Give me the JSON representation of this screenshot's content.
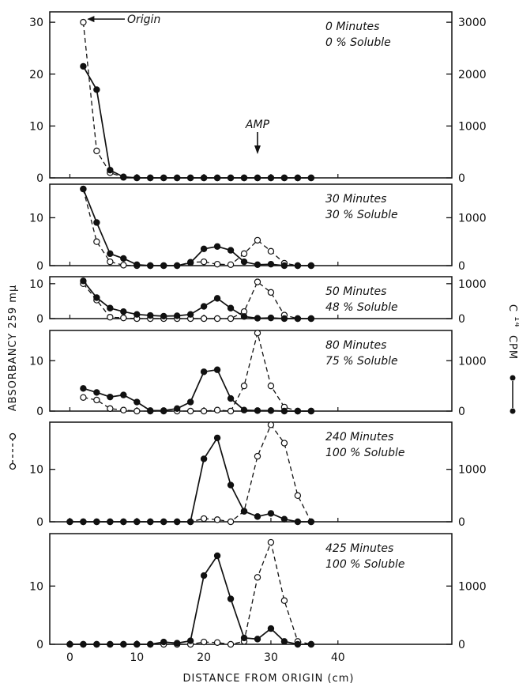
{
  "chart_data": {
    "type": "line",
    "xlabel": "DISTANCE FROM ORIGIN (cm)",
    "ylabel_left": "ABSORBANCY 259 mμ",
    "ylabel_right": "C14 CPM",
    "ylabel_right_base": "C",
    "ylabel_right_sup": "14",
    "ylabel_right_unit": "CPM",
    "x_ticks": [
      0,
      10,
      20,
      30,
      40
    ],
    "xlim": [
      -3,
      57
    ],
    "annotations": {
      "origin": "Origin",
      "amp": "AMP"
    },
    "panels": [
      {
        "time": "0 Minutes",
        "soluble": "0 % Soluble",
        "ylim_left": [
          0,
          32
        ],
        "left_ticks": [
          0,
          10,
          20,
          30
        ],
        "right_ticks": [
          0,
          1000,
          2000,
          3000
        ],
        "ylim_right": [
          0,
          3200
        ],
        "series": [
          {
            "name": "Absorbancy 259 mμ",
            "style": "dashed-open",
            "x": [
              2,
              4,
              6,
              8,
              10,
              12,
              14,
              16,
              18,
              20,
              22,
              24,
              26,
              28,
              30,
              32,
              34,
              36
            ],
            "y": [
              30,
              5.2,
              1,
              0.1,
              0,
              0,
              0,
              0,
              0,
              0,
              0,
              0,
              0,
              0,
              0,
              0,
              0,
              0
            ]
          },
          {
            "name": "C14 CPM",
            "style": "solid-filled",
            "x": [
              2,
              4,
              6,
              8,
              10,
              12,
              14,
              16,
              18,
              20,
              22,
              24,
              26,
              28,
              30,
              32,
              34,
              36
            ],
            "y": [
              2150,
              1700,
              150,
              20,
              0,
              0,
              0,
              0,
              0,
              0,
              0,
              0,
              0,
              0,
              0,
              0,
              0,
              0
            ]
          }
        ]
      },
      {
        "time": "30 Minutes",
        "soluble": "30 % Soluble",
        "ylim_left": [
          0,
          17
        ],
        "left_ticks": [
          0,
          10
        ],
        "right_ticks": [
          0,
          1000
        ],
        "ylim_right": [
          0,
          1700
        ],
        "series": [
          {
            "name": "Absorbancy 259 mμ",
            "style": "dashed-open",
            "x": [
              2,
              4,
              6,
              8,
              10,
              12,
              14,
              16,
              18,
              20,
              22,
              24,
              26,
              28,
              30,
              32,
              34,
              36
            ],
            "y": [
              16,
              5,
              0.8,
              0.1,
              0,
              0,
              0,
              0,
              0.7,
              0.8,
              0.3,
              0.2,
              2.5,
              5.3,
              3,
              0.5,
              0,
              0
            ]
          },
          {
            "name": "C14 CPM",
            "style": "solid-filled",
            "x": [
              2,
              4,
              6,
              8,
              10,
              12,
              14,
              16,
              18,
              20,
              22,
              24,
              26,
              28,
              30,
              32,
              34,
              36
            ],
            "y": [
              1600,
              900,
              250,
              150,
              20,
              0,
              0,
              0,
              60,
              350,
              400,
              320,
              80,
              20,
              30,
              0,
              0,
              0
            ]
          }
        ]
      },
      {
        "time": "50 Minutes",
        "soluble": "48 % Soluble",
        "ylim_left": [
          0,
          12
        ],
        "left_ticks": [
          0,
          10
        ],
        "right_ticks": [
          0,
          1000
        ],
        "ylim_right": [
          0,
          1200
        ],
        "series": [
          {
            "name": "Absorbancy 259 mμ",
            "style": "dashed-open",
            "x": [
              2,
              4,
              6,
              8,
              10,
              12,
              14,
              16,
              18,
              20,
              22,
              24,
              26,
              28,
              30,
              32,
              34,
              36
            ],
            "y": [
              10,
              5.3,
              0.4,
              0.2,
              0,
              0,
              0,
              0,
              0,
              0,
              0,
              0,
              2,
              10.5,
              7.5,
              1,
              0,
              0
            ]
          },
          {
            "name": "C14 CPM",
            "style": "solid-filled",
            "x": [
              2,
              4,
              6,
              8,
              10,
              12,
              14,
              16,
              18,
              20,
              22,
              24,
              26,
              28,
              30,
              32,
              34,
              36
            ],
            "y": [
              1080,
              600,
              300,
              200,
              120,
              90,
              70,
              80,
              120,
              350,
              580,
              300,
              60,
              10,
              20,
              0,
              0,
              0
            ]
          }
        ]
      },
      {
        "time": "80 Minutes",
        "soluble": "75 % Soluble",
        "ylim_left": [
          0,
          16
        ],
        "left_ticks": [
          0,
          10
        ],
        "right_ticks": [
          0,
          1000
        ],
        "ylim_right": [
          0,
          1600
        ],
        "series": [
          {
            "name": "Absorbancy 259 mμ",
            "style": "dashed-open",
            "x": [
              2,
              4,
              6,
              8,
              10,
              12,
              14,
              16,
              18,
              20,
              22,
              24,
              26,
              28,
              30,
              32,
              34,
              36
            ],
            "y": [
              2.7,
              2.2,
              0.5,
              0.2,
              0,
              0,
              0,
              0,
              0,
              0,
              0.2,
              0,
              5,
              15.5,
              5,
              0.8,
              0,
              0
            ]
          },
          {
            "name": "C14 CPM",
            "style": "solid-filled",
            "x": [
              2,
              4,
              6,
              8,
              10,
              12,
              14,
              16,
              18,
              20,
              22,
              24,
              26,
              28,
              30,
              32,
              34,
              36
            ],
            "y": [
              450,
              370,
              280,
              320,
              180,
              10,
              10,
              50,
              180,
              780,
              820,
              250,
              20,
              10,
              10,
              0,
              0,
              0
            ]
          }
        ]
      },
      {
        "time": "240 Minutes",
        "soluble": "100 % Soluble",
        "ylim_left": [
          0,
          19
        ],
        "left_ticks": [
          0,
          10
        ],
        "right_ticks": [
          0,
          1000
        ],
        "ylim_right": [
          0,
          1900
        ],
        "series": [
          {
            "name": "Absorbancy 259 mμ",
            "style": "dashed-open",
            "x": [
              0,
              2,
              4,
              6,
              8,
              10,
              12,
              14,
              16,
              18,
              20,
              22,
              24,
              26,
              28,
              30,
              32,
              34,
              36
            ],
            "y": [
              0,
              0,
              0,
              0,
              0,
              0,
              0,
              0,
              0,
              0,
              0.6,
              0.4,
              0,
              2,
              12.5,
              18.5,
              15,
              5,
              0
            ]
          },
          {
            "name": "C14 CPM",
            "style": "solid-filled",
            "x": [
              0,
              2,
              4,
              6,
              8,
              10,
              12,
              14,
              16,
              18,
              20,
              22,
              24,
              26,
              28,
              30,
              32,
              34,
              36
            ],
            "y": [
              0,
              0,
              0,
              0,
              0,
              0,
              0,
              0,
              0,
              0,
              1200,
              1600,
              700,
              200,
              100,
              160,
              50,
              0,
              0
            ]
          }
        ]
      },
      {
        "time": "425 Minutes",
        "soluble": "100 % Soluble",
        "ylim_left": [
          0,
          19
        ],
        "left_ticks": [
          0,
          10
        ],
        "right_ticks": [
          0,
          1000
        ],
        "ylim_right": [
          0,
          1900
        ],
        "series": [
          {
            "name": "Absorbancy 259 mμ",
            "style": "dashed-open",
            "x": [
              0,
              2,
              4,
              6,
              8,
              10,
              12,
              14,
              16,
              18,
              20,
              22,
              24,
              26,
              28,
              30,
              32,
              34,
              36
            ],
            "y": [
              0,
              0,
              0,
              0,
              0,
              0,
              0,
              0,
              0,
              0,
              0.4,
              0.3,
              0,
              0.5,
              11.5,
              17.5,
              7.5,
              0.5,
              0
            ]
          },
          {
            "name": "C14 CPM",
            "style": "solid-filled",
            "x": [
              0,
              2,
              4,
              6,
              8,
              10,
              12,
              14,
              16,
              18,
              20,
              22,
              24,
              26,
              28,
              30,
              32,
              34,
              36
            ],
            "y": [
              0,
              0,
              0,
              0,
              0,
              0,
              0,
              40,
              20,
              60,
              1180,
              1520,
              780,
              110,
              90,
              270,
              50,
              0,
              0
            ]
          }
        ]
      }
    ]
  }
}
